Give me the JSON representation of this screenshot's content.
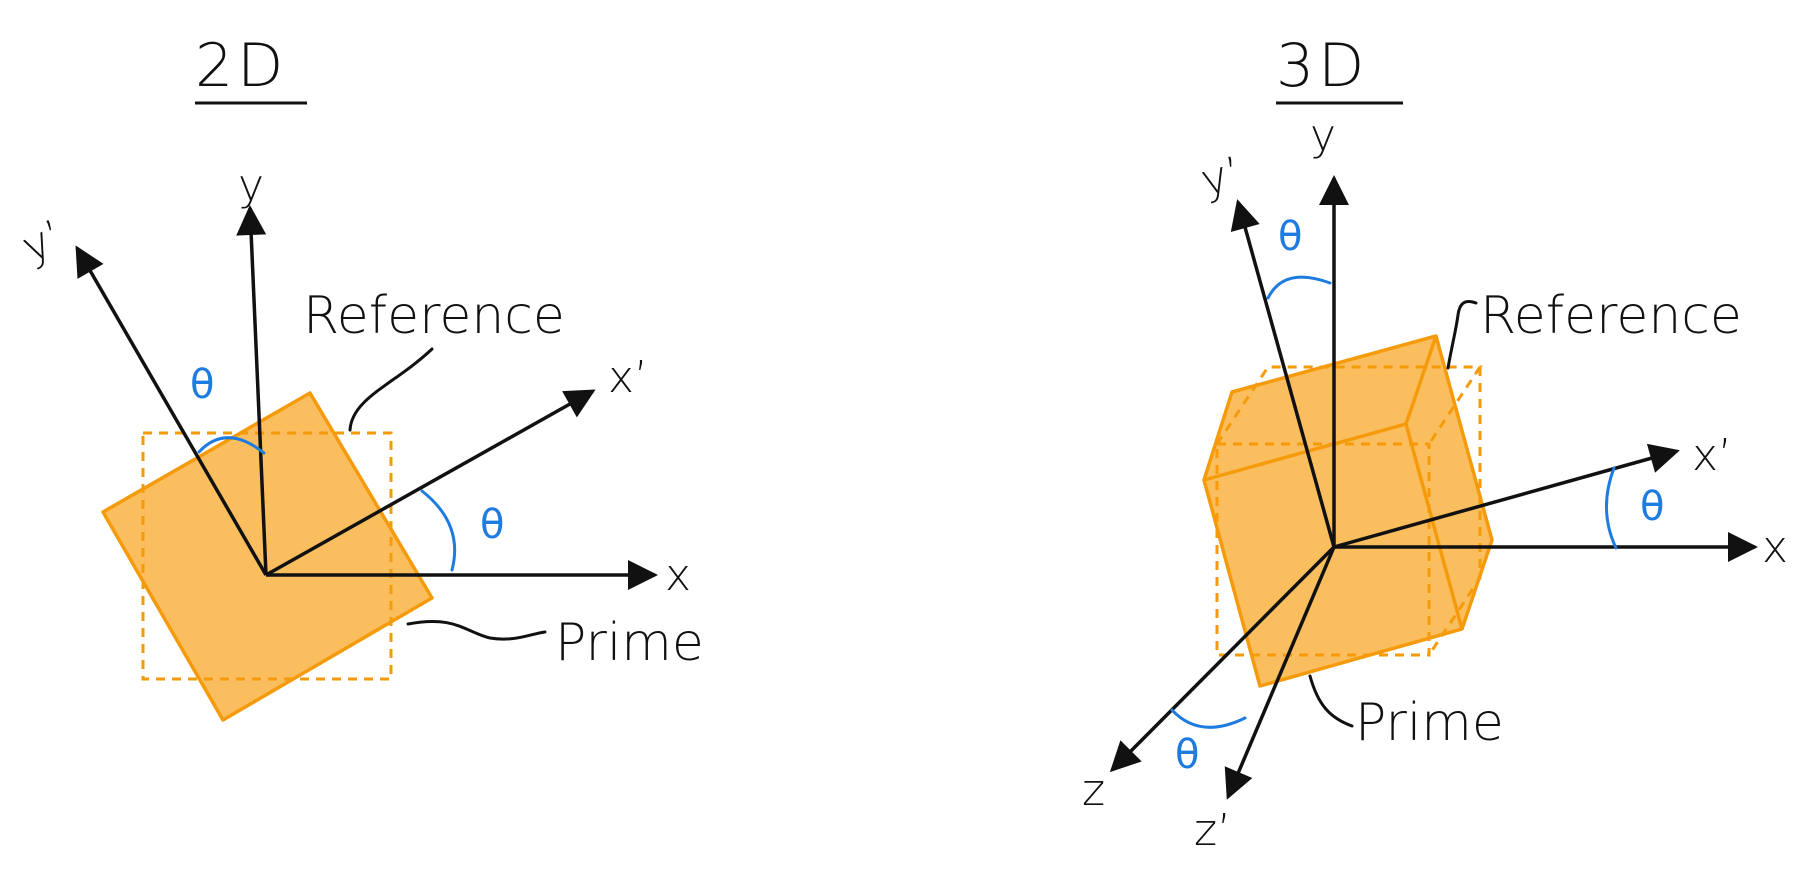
{
  "colors": {
    "prime_fill": "#FBBE5E",
    "orange_stroke": "#F59B0B",
    "theta_blue": "#1E7BE0",
    "ink": "#111111"
  },
  "panel_2d": {
    "title": "2D",
    "labels": {
      "reference": "Reference",
      "prime": "Prime"
    },
    "axes": {
      "x": "x",
      "y": "y",
      "x_prime": "x’",
      "y_prime": "y’"
    },
    "theta_symbol": "θ"
  },
  "panel_3d": {
    "title": "3D",
    "labels": {
      "reference": "Reference",
      "prime": "Prime"
    },
    "axes": {
      "x": "x",
      "y": "y",
      "z": "z",
      "x_prime": "x’",
      "y_prime": "y’",
      "z_prime": "z’"
    },
    "theta_symbol": "θ"
  }
}
